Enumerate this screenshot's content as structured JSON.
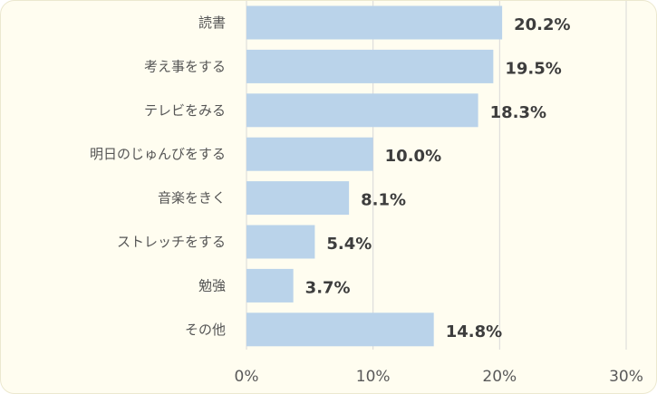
{
  "chart_data": {
    "type": "bar",
    "orientation": "horizontal",
    "categories": [
      "読書",
      "考え事をする",
      "テレビをみる",
      "明日のじゅんびをする",
      "音楽をきく",
      "ストレッチをする",
      "勉強",
      "その他"
    ],
    "values": [
      20.2,
      19.5,
      18.3,
      10.0,
      8.1,
      5.4,
      3.7,
      14.8
    ],
    "data_labels": [
      "20.2%",
      "19.5%",
      "18.3%",
      "10.0%",
      "8.1%",
      "5.4%",
      "3.7%",
      "14.8%"
    ],
    "xlim": [
      0,
      30
    ],
    "x_ticks": [
      0,
      10,
      20,
      30
    ],
    "x_tick_labels": [
      "0%",
      "10%",
      "20%",
      "30%"
    ],
    "grid": "vertical",
    "legend": "none",
    "colors": {
      "bar": "#bad3ea",
      "grid": "#d9d9d9",
      "background": "#fffdf0"
    }
  }
}
